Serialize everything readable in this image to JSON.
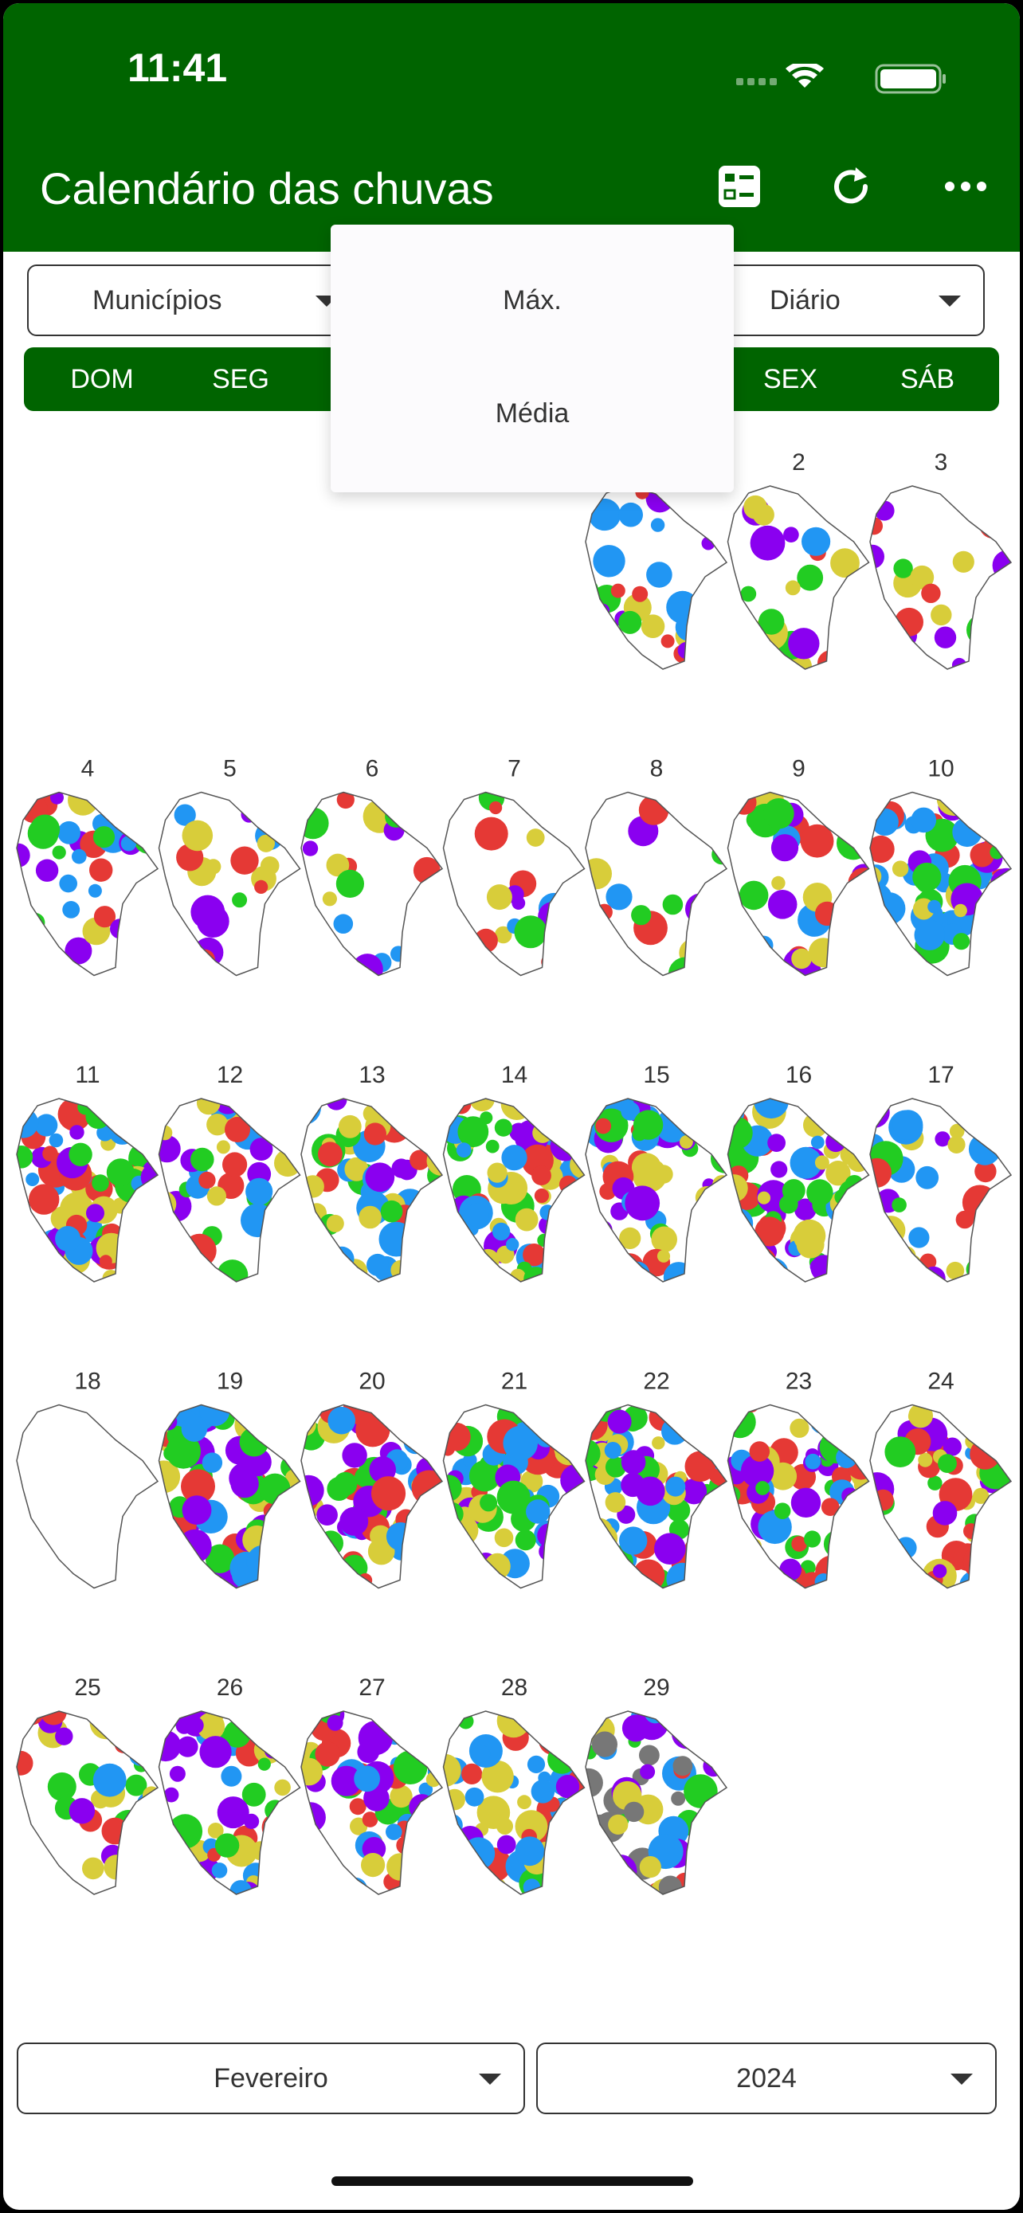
{
  "status_bar": {
    "time": "11:41"
  },
  "app_bar": {
    "title": "Calendário das chuvas"
  },
  "filters": {
    "region": "Municípios",
    "period": "Diário"
  },
  "menu": {
    "items": [
      "Máx.",
      "Média"
    ]
  },
  "weekdays": [
    "DOM",
    "SEG",
    "SEX",
    "SÁB"
  ],
  "calendar": {
    "days": [
      "2",
      "3",
      "4",
      "5",
      "6",
      "7",
      "8",
      "9",
      "10",
      "11",
      "12",
      "13",
      "14",
      "15",
      "16",
      "17",
      "18",
      "19",
      "20",
      "21",
      "22",
      "23",
      "24",
      "25",
      "26",
      "27",
      "28",
      "29"
    ]
  },
  "footer": {
    "month": "Fevereiro",
    "year": "2024"
  }
}
